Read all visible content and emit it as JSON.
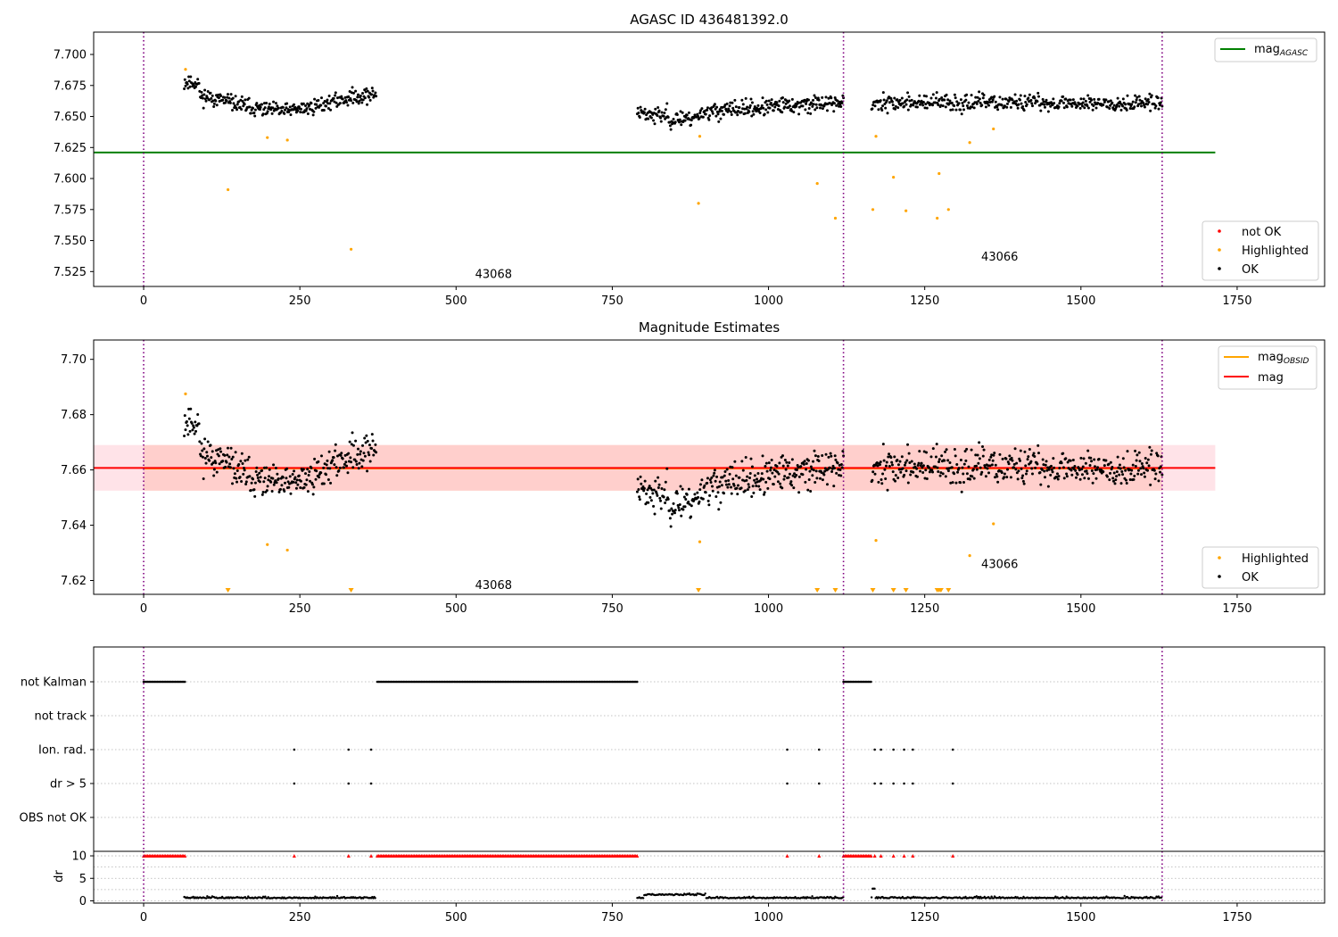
{
  "figure": {
    "width": 1500,
    "height": 1050
  },
  "chart_data": [
    {
      "id": "agasc",
      "type": "scatter",
      "title": "AGASC ID 436481392.0",
      "xlim": [
        -80,
        1890
      ],
      "ylim": [
        7.513,
        7.718
      ],
      "xticks": [
        0,
        250,
        500,
        750,
        1000,
        1250,
        1500,
        1750
      ],
      "yticks": [
        7.525,
        7.55,
        7.575,
        7.6,
        7.625,
        7.65,
        7.675,
        7.7
      ],
      "ytick_format": 3,
      "obs_boundaries": [
        0,
        1120,
        1630
      ],
      "obs_labels": [
        {
          "text": "43068",
          "x": 560,
          "y": 7.52
        },
        {
          "text": "43066",
          "x": 1370,
          "y": 7.534
        }
      ],
      "hlines": [
        {
          "name": "mag_AGASC",
          "y": 7.621,
          "x0": -80,
          "x1": 1715,
          "color": "#008000"
        }
      ],
      "segments": [
        {
          "x0": 65,
          "x1": 372,
          "pattern": "arc",
          "base": 7.661,
          "amp": 0.007,
          "noise": 0.006,
          "n": 300,
          "seed": 11
        },
        {
          "x0": 790,
          "x1": 1120,
          "pattern": "rise",
          "base": 7.654,
          "amp": 0.012,
          "noise": 0.0065,
          "n": 320,
          "seed": 23
        },
        {
          "x0": 1165,
          "x1": 1630,
          "pattern": "flat",
          "base": 7.661,
          "amp": 0.0,
          "noise": 0.0065,
          "n": 420,
          "seed": 37
        }
      ],
      "highlighted": [
        [
          67,
          7.688
        ],
        [
          135,
          7.591
        ],
        [
          198,
          7.633
        ],
        [
          230,
          7.631
        ],
        [
          332,
          7.543
        ],
        [
          888,
          7.58
        ],
        [
          890,
          7.634
        ],
        [
          1078,
          7.596
        ],
        [
          1107,
          7.568
        ],
        [
          1167,
          7.575
        ],
        [
          1172,
          7.634
        ],
        [
          1200,
          7.601
        ],
        [
          1220,
          7.574
        ],
        [
          1270,
          7.568
        ],
        [
          1273,
          7.604
        ],
        [
          1288,
          7.575
        ],
        [
          1322,
          7.629
        ],
        [
          1360,
          7.64
        ]
      ],
      "legend_top": [
        {
          "label": "mag",
          "sub": "AGASC",
          "kind": "line",
          "color": "#008000"
        }
      ],
      "legend_bottom": [
        {
          "label": "not OK",
          "color": "#ff0000"
        },
        {
          "label": "Highlighted",
          "color": "#ffa500"
        },
        {
          "label": "OK",
          "color": "#000000"
        }
      ]
    },
    {
      "id": "estimates",
      "type": "scatter",
      "title": "Magnitude Estimates",
      "xlim": [
        -80,
        1890
      ],
      "ylim": [
        7.615,
        7.707
      ],
      "xticks": [
        0,
        250,
        500,
        750,
        1000,
        1250,
        1500,
        1750
      ],
      "yticks": [
        7.62,
        7.64,
        7.66,
        7.68,
        7.7
      ],
      "ytick_format": 2,
      "obs_boundaries": [
        0,
        1120,
        1630
      ],
      "obs_labels": [
        {
          "text": "43068",
          "x": 560,
          "y": 7.617
        },
        {
          "text": "43066",
          "x": 1370,
          "y": 7.6245
        }
      ],
      "bands": [
        {
          "name": "mag_OBSID band 43068",
          "x0": 0,
          "x1": 1120,
          "y0": 7.6525,
          "y1": 7.669,
          "color": "#ffa07a",
          "opacity": 0.38
        },
        {
          "name": "mag_OBSID band 43066",
          "x0": 1120,
          "x1": 1630,
          "y0": 7.6525,
          "y1": 7.669,
          "color": "#ffa07a",
          "opacity": 0.38
        },
        {
          "name": "mag band",
          "x0": -80,
          "x1": 1715,
          "y0": 7.6525,
          "y1": 7.669,
          "color": "#ffc0cb",
          "opacity": 0.45
        }
      ],
      "hlines": [
        {
          "name": "mag_OBSID 43068",
          "y": 7.6605,
          "x0": 0,
          "x1": 1120,
          "color": "#ffa500"
        },
        {
          "name": "mag_OBSID 43066",
          "y": 7.6605,
          "x0": 1120,
          "x1": 1630,
          "color": "#ffa500"
        },
        {
          "name": "mag",
          "y": 7.6607,
          "x0": -80,
          "x1": 1715,
          "color": "#ff0000"
        }
      ],
      "highlighted": [
        [
          67,
          7.6875
        ],
        [
          198,
          7.633
        ],
        [
          230,
          7.631
        ],
        [
          890,
          7.634
        ],
        [
          1172,
          7.6345
        ],
        [
          1322,
          7.629
        ],
        [
          1360,
          7.6405
        ]
      ],
      "offscale_x": [
        135,
        332,
        888,
        1078,
        1107,
        1167,
        1200,
        1220,
        1270,
        1273,
        1276,
        1288
      ],
      "legend_top": [
        {
          "label": "mag",
          "sub": "OBSID",
          "kind": "line",
          "color": "#ffa500"
        },
        {
          "label": "mag",
          "sub": "",
          "kind": "line",
          "color": "#ff0000"
        }
      ],
      "legend_bottom": [
        {
          "label": "Highlighted",
          "color": "#ffa500"
        },
        {
          "label": "OK",
          "color": "#000000"
        }
      ]
    },
    {
      "id": "flags",
      "type": "scatter",
      "xlim": [
        -80,
        1890
      ],
      "categories": [
        "not Kalman",
        "not track",
        "Ion. rad.",
        "dr > 5",
        "OBS not OK"
      ],
      "flag_runs": [
        {
          "category": "not Kalman",
          "ranges": [
            [
              0,
              67
            ],
            [
              374,
              790
            ],
            [
              1120,
              1165
            ]
          ]
        }
      ],
      "flag_points": [
        {
          "category": "Ion. rad.",
          "x": [
            241,
            328,
            364,
            1030,
            1081,
            1170,
            1180,
            1200,
            1217,
            1231,
            1295
          ]
        },
        {
          "category": "dr > 5",
          "x": [
            241,
            328,
            364,
            1030,
            1081,
            1170,
            1180,
            1200,
            1217,
            1231,
            1295
          ]
        }
      ],
      "obs_boundaries": [
        0,
        1120,
        1630
      ]
    },
    {
      "id": "dr",
      "type": "scatter",
      "ylabel": "dr",
      "xlim": [
        -80,
        1890
      ],
      "ylim": [
        -0.5,
        11
      ],
      "yticks": [
        0,
        5,
        10
      ],
      "xticks": [
        0,
        250,
        500,
        750,
        1000,
        1250,
        1500,
        1750
      ],
      "cap": 10,
      "capped_runs": [
        [
          0,
          67
        ],
        [
          374,
          790
        ],
        [
          1120,
          1165
        ]
      ],
      "capped_points": [
        241,
        328,
        364,
        1030,
        1081,
        1170,
        1180,
        1200,
        1217,
        1231,
        1295
      ],
      "segments": [
        [
          65,
          372
        ],
        [
          790,
          1120
        ],
        [
          1165,
          1630
        ]
      ],
      "obs_boundaries": [
        0,
        1120,
        1630
      ]
    }
  ]
}
